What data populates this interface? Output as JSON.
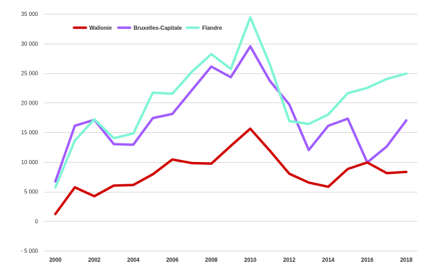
{
  "chart_data": {
    "type": "line",
    "x": [
      2000,
      2001,
      2002,
      2003,
      2004,
      2005,
      2006,
      2007,
      2008,
      2009,
      2010,
      2011,
      2012,
      2013,
      2014,
      2015,
      2016,
      2017,
      2018
    ],
    "x_tick_labels": [
      "2000",
      "2002",
      "2004",
      "2006",
      "2008",
      "2010",
      "2012",
      "2014",
      "2016",
      "2018"
    ],
    "x_tick_values": [
      2000,
      2002,
      2004,
      2006,
      2008,
      2010,
      2012,
      2014,
      2016,
      2018
    ],
    "y_tick_values": [
      -5000,
      0,
      5000,
      10000,
      15000,
      20000,
      25000,
      30000,
      35000
    ],
    "y_tick_labels": [
      "- 5 000",
      "0",
      "5 000",
      "10 000",
      "15 000",
      "20 000",
      "25 000",
      "30 000",
      "35 000"
    ],
    "ylim": [
      -5000,
      35000
    ],
    "xlim": [
      2000,
      2018
    ],
    "grid": true,
    "legend_position": "top-left",
    "series": [
      {
        "name": "Wallonie",
        "color": "#d00000",
        "values": [
          1200,
          5700,
          4200,
          6000,
          6100,
          7900,
          10400,
          9800,
          9700,
          12700,
          15600,
          11900,
          8000,
          6500,
          5800,
          8800,
          9900,
          8100,
          8300
        ]
      },
      {
        "name": "Bruxelles-Capitale",
        "color": "#a05cff",
        "values": [
          6700,
          16100,
          17100,
          13000,
          12900,
          17400,
          18100,
          22100,
          26100,
          24300,
          29500,
          23700,
          19700,
          12000,
          16100,
          17300,
          9900,
          12600,
          17000
        ]
      },
      {
        "name": "Flandre",
        "color": "#7ff5d5",
        "values": [
          5700,
          13600,
          17200,
          14000,
          14800,
          21700,
          21500,
          25200,
          28200,
          25700,
          34400,
          26500,
          16900,
          16400,
          18000,
          21600,
          22500,
          24000,
          24900
        ]
      }
    ]
  }
}
